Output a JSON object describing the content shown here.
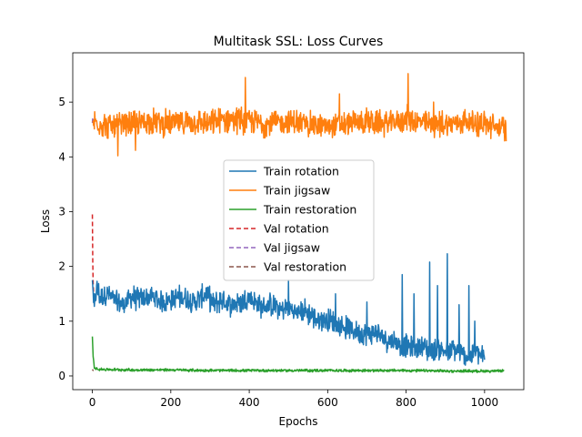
{
  "chart_data": {
    "type": "line",
    "title": "Multitask SSL: Loss Curves",
    "xlabel": "Epochs",
    "ylabel": "Loss",
    "xlim": [
      -50,
      1100
    ],
    "ylim": [
      -0.25,
      5.9
    ],
    "xticks": [
      0,
      200,
      400,
      600,
      800,
      1000
    ],
    "yticks": [
      0,
      1,
      2,
      3,
      4,
      5
    ],
    "grid": false,
    "legend_position": "center",
    "series": [
      {
        "name": "Train rotation",
        "color": "#1f77b4",
        "style": "solid",
        "x": [
          0,
          5,
          10,
          20,
          40,
          60,
          80,
          100,
          120,
          150,
          180,
          200,
          230,
          260,
          290,
          310,
          330,
          350,
          380,
          400,
          430,
          460,
          480,
          500,
          520,
          540,
          560,
          580,
          600,
          620,
          640,
          660,
          680,
          700,
          720,
          740,
          760,
          780,
          800,
          820,
          840,
          860,
          880,
          900,
          910,
          920,
          940,
          960,
          980,
          1000
        ],
        "values": [
          1.75,
          1.2,
          1.6,
          1.45,
          1.5,
          1.35,
          1.3,
          1.45,
          1.4,
          1.45,
          1.35,
          1.4,
          1.45,
          1.35,
          1.5,
          1.3,
          1.4,
          1.3,
          1.35,
          1.45,
          1.25,
          1.3,
          1.2,
          1.25,
          1.15,
          1.2,
          1.1,
          1.0,
          1.05,
          0.95,
          0.9,
          0.85,
          0.8,
          0.75,
          0.8,
          0.7,
          0.65,
          0.6,
          0.55,
          0.5,
          0.55,
          0.45,
          0.5,
          0.45,
          0.4,
          0.5,
          0.4,
          0.35,
          0.45,
          0.3
        ],
        "noise_amplitude": 0.25,
        "spikes": [
          [
            500,
            1.75
          ],
          [
            620,
            1.5
          ],
          [
            700,
            1.35
          ],
          [
            790,
            1.85
          ],
          [
            820,
            1.5
          ],
          [
            860,
            2.08
          ],
          [
            880,
            1.65
          ],
          [
            905,
            2.23
          ],
          [
            935,
            1.3
          ],
          [
            960,
            1.65
          ],
          [
            975,
            1.0
          ]
        ]
      },
      {
        "name": "Train jigsaw",
        "color": "#ff7f0e",
        "style": "solid",
        "x": [
          0,
          50,
          100,
          150,
          200,
          250,
          300,
          350,
          400,
          450,
          500,
          550,
          600,
          650,
          700,
          750,
          800,
          850,
          900,
          950,
          1000,
          1055
        ],
        "values": [
          4.65,
          4.55,
          4.6,
          4.65,
          4.6,
          4.65,
          4.6,
          4.7,
          4.65,
          4.6,
          4.65,
          4.6,
          4.55,
          4.6,
          4.65,
          4.6,
          4.7,
          4.6,
          4.6,
          4.65,
          4.6,
          4.5
        ],
        "noise_amplitude": 0.28,
        "spikes": [
          [
            65,
            4.02
          ],
          [
            110,
            4.12
          ],
          [
            390,
            5.45
          ],
          [
            630,
            5.15
          ],
          [
            805,
            5.52
          ],
          [
            870,
            5.0
          ]
        ]
      },
      {
        "name": "Train restoration",
        "color": "#2ca02c",
        "style": "solid",
        "x": [
          0,
          2,
          5,
          20,
          100,
          200,
          300,
          400,
          500,
          600,
          700,
          800,
          900,
          1000,
          1050
        ],
        "values": [
          0.72,
          0.35,
          0.15,
          0.12,
          0.11,
          0.11,
          0.1,
          0.1,
          0.1,
          0.1,
          0.1,
          0.1,
          0.09,
          0.09,
          0.09
        ],
        "noise_amplitude": 0.03,
        "spikes": []
      },
      {
        "name": "Val rotation",
        "color": "#d62728",
        "style": "dashed",
        "x": [
          0,
          1,
          2,
          3,
          4,
          5
        ],
        "values": [
          2.95,
          2.1,
          1.7,
          1.55,
          1.4,
          1.3
        ],
        "noise_amplitude": 0,
        "spikes": []
      },
      {
        "name": "Val jigsaw",
        "color": "#9467bd",
        "style": "dashed",
        "x": [
          0,
          1,
          2,
          3
        ],
        "values": [
          4.62,
          4.72,
          4.65,
          4.6
        ],
        "noise_amplitude": 0,
        "spikes": []
      },
      {
        "name": "Val restoration",
        "color": "#8c564b",
        "style": "dashed",
        "x": [
          0,
          1,
          2,
          3
        ],
        "values": [
          0.12,
          0.11,
          0.1,
          0.1
        ],
        "noise_amplitude": 0,
        "spikes": []
      }
    ]
  }
}
